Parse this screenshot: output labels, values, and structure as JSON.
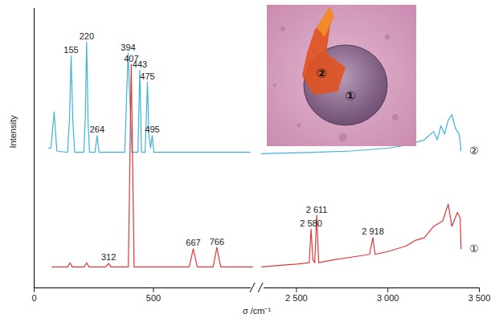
{
  "chart_data": {
    "type": "line",
    "xlabel": "σ /cm⁻¹",
    "ylabel": "Intensity",
    "xlim": [
      0,
      3500
    ],
    "xbreak": [
      920,
      2310
    ],
    "xticks": [
      0,
      500,
      {
        "value": 2500,
        "label": "2 500"
      },
      {
        "value": 3000,
        "label": "3 000"
      },
      {
        "value": 3500,
        "label": "3 500"
      }
    ],
    "ylim": [
      0,
      100
    ],
    "yticks": [],
    "tick_labels": "x",
    "series": [
      {
        "name": "②",
        "color": "#3db4dc",
        "x": [
          60,
          70,
          84,
          95,
          140,
          148,
          155,
          162,
          170,
          208,
          214,
          220,
          226,
          232,
          255,
          264,
          272,
          380,
          388,
          394,
          400,
          410,
          435,
          443,
          450,
          465,
          470,
          475,
          481,
          488,
          495,
          502,
          510,
          905,
          2310,
          2600,
          2800,
          3000,
          3100,
          3200,
          3250,
          3270,
          3290,
          3310,
          3330,
          3350,
          3370,
          3390,
          3400
        ],
        "values": [
          50,
          50,
          63,
          49,
          48.5,
          60,
          83,
          60,
          48.5,
          48.5,
          60,
          88,
          60,
          48.5,
          48.5,
          54.5,
          48.5,
          48.5,
          70,
          84,
          70,
          48.5,
          48.5,
          78,
          48.5,
          48.5,
          60,
          73.6,
          55,
          50,
          54.5,
          48.5,
          48.5,
          48.5,
          48,
          48.5,
          49,
          50,
          51,
          53,
          56,
          53,
          58,
          55,
          60,
          62,
          57,
          55,
          49
        ]
      },
      {
        "name": "①",
        "color": "#e0373a",
        "x": [
          75,
          140,
          150,
          160,
          210,
          220,
          230,
          300,
          312,
          322,
          395,
          407,
          419,
          650,
          667,
          684,
          750,
          766,
          782,
          915,
          2310,
          2400,
          2500,
          2570,
          2580,
          2590,
          2600,
          2611,
          2622,
          2700,
          2800,
          2900,
          2918,
          2930,
          3000,
          3100,
          3150,
          3200,
          3250,
          3300,
          3330,
          3350,
          3380,
          3395,
          3400
        ],
        "values": [
          7.5,
          7.5,
          9,
          7.5,
          7.5,
          9,
          7.5,
          7.5,
          8.8,
          7.5,
          7.5,
          80,
          7.5,
          7.5,
          14,
          7.5,
          7.5,
          14.5,
          7.5,
          7.5,
          7.5,
          8,
          8.5,
          9,
          21,
          10,
          9,
          26,
          9,
          10,
          11,
          12,
          18,
          12,
          13,
          15,
          17,
          18,
          22,
          24,
          30,
          22,
          27,
          25,
          14
        ]
      }
    ],
    "annotations": [
      {
        "text": "155",
        "x": 155,
        "series": "②"
      },
      {
        "text": "220",
        "x": 220,
        "series": "②"
      },
      {
        "text": "264",
        "x": 264,
        "series": "②"
      },
      {
        "text": "394",
        "x": 394,
        "series": "②"
      },
      {
        "text": "443",
        "x": 443,
        "series": "②"
      },
      {
        "text": "475",
        "x": 475,
        "series": "②"
      },
      {
        "text": "495",
        "x": 495,
        "series": "②"
      },
      {
        "text": "312",
        "x": 312,
        "series": "①"
      },
      {
        "text": "407",
        "x": 407,
        "series": "①"
      },
      {
        "text": "667",
        "x": 667,
        "series": "①"
      },
      {
        "text": "766",
        "x": 766,
        "series": "①"
      },
      {
        "text": "2 580",
        "x": 2580,
        "series": "①"
      },
      {
        "text": "2 611",
        "x": 2611,
        "series": "①"
      },
      {
        "text": "2 918",
        "x": 2918,
        "series": "①"
      }
    ],
    "inset": {
      "labels": [
        "②",
        "①"
      ]
    }
  }
}
